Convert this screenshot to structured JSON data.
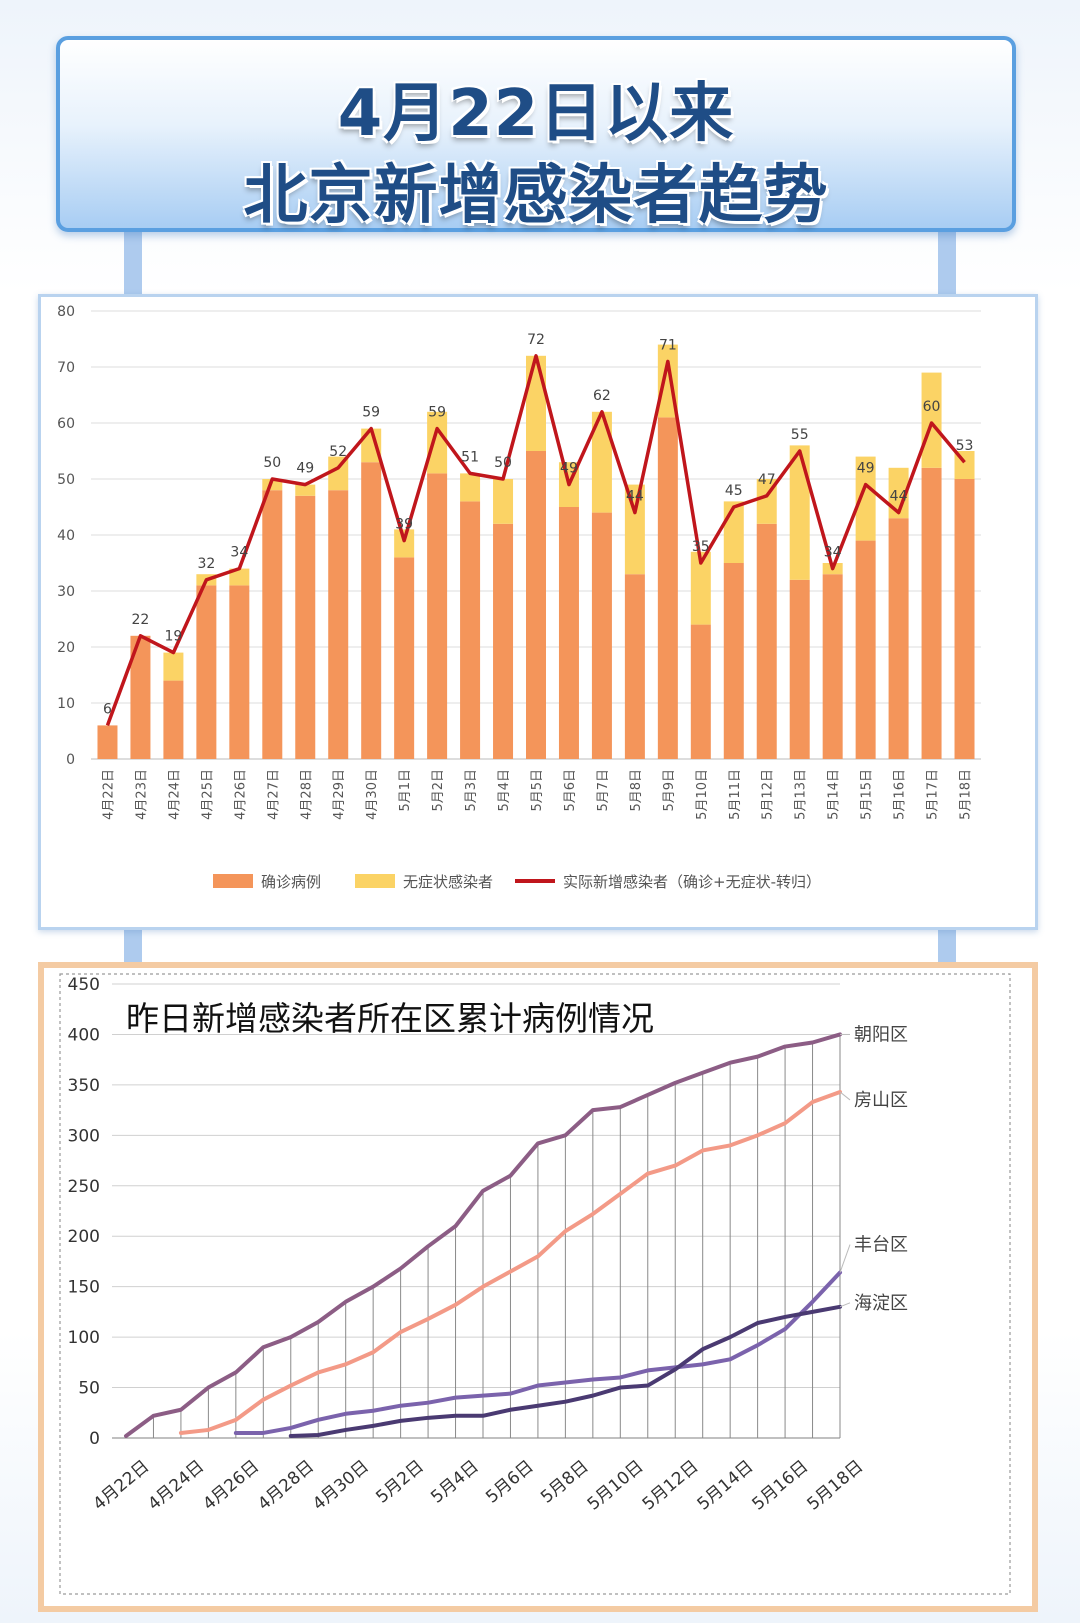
{
  "title": {
    "line1": "4月22日以来",
    "line2": "北京新增感染者趋势"
  },
  "chart_data": [
    {
      "type": "bar",
      "title": "",
      "stacked": true,
      "ylim": [
        0,
        80
      ],
      "yticks": [
        0,
        10,
        20,
        30,
        40,
        50,
        60,
        70,
        80
      ],
      "grid": true,
      "legend_position": "bottom",
      "categories": [
        "4月22日",
        "4月23日",
        "4月24日",
        "4月25日",
        "4月26日",
        "4月27日",
        "4月28日",
        "4月29日",
        "4月30日",
        "5月1日",
        "5月2日",
        "5月3日",
        "5月4日",
        "5月5日",
        "5月6日",
        "5月7日",
        "5月8日",
        "5月9日",
        "5月10日",
        "5月11日",
        "5月12日",
        "5月13日",
        "5月14日",
        "5月15日",
        "5月16日",
        "5月17日",
        "5月18日"
      ],
      "series": [
        {
          "name": "确诊病例",
          "type": "bar",
          "color": "#f4955a",
          "values": [
            6,
            22,
            14,
            31,
            31,
            48,
            47,
            48,
            53,
            36,
            51,
            46,
            42,
            55,
            45,
            44,
            33,
            61,
            24,
            35,
            42,
            32,
            33,
            39,
            43,
            52,
            50
          ]
        },
        {
          "name": "无症状感染者",
          "type": "bar",
          "color": "#fbd365",
          "values": [
            0,
            0,
            5,
            2,
            3,
            2,
            2,
            6,
            6,
            5,
            11,
            5,
            8,
            17,
            8,
            18,
            16,
            13,
            13,
            11,
            8,
            24,
            2,
            15,
            9,
            17,
            5
          ]
        },
        {
          "name": "实际新增感染者（确诊+无症状-转归）",
          "type": "line",
          "color": "#c0161c",
          "values": [
            6,
            22,
            19,
            32,
            34,
            50,
            49,
            52,
            59,
            39,
            59,
            51,
            50,
            72,
            49,
            62,
            44,
            71,
            35,
            45,
            47,
            55,
            34,
            49,
            44,
            60,
            53
          ]
        }
      ]
    },
    {
      "type": "line",
      "title": "昨日新增感染者所在区累计病例情况",
      "ylim": [
        0,
        450
      ],
      "yticks": [
        0,
        50,
        100,
        150,
        200,
        250,
        300,
        350,
        400,
        450
      ],
      "grid": true,
      "x": [
        "4月22日",
        "4月23日",
        "4月24日",
        "4月25日",
        "4月26日",
        "4月27日",
        "4月28日",
        "4月29日",
        "4月30日",
        "5月1日",
        "5月2日",
        "5月3日",
        "5月4日",
        "5月5日",
        "5月6日",
        "5月7日",
        "5月8日",
        "5月9日",
        "5月10日",
        "5月11日",
        "5月12日",
        "5月13日",
        "5月14日",
        "5月15日",
        "5月16日",
        "5月17日",
        "5月18日"
      ],
      "xtick_labels": [
        "4月22日",
        "4月24日",
        "4月26日",
        "4月28日",
        "4月30日",
        "5月2日",
        "5月4日",
        "5月6日",
        "5月8日",
        "5月10日",
        "5月12日",
        "5月14日",
        "5月16日",
        "5月18日"
      ],
      "series": [
        {
          "name": "朝阳区",
          "color": "#8c5d85",
          "values": [
            2,
            22,
            28,
            50,
            65,
            90,
            100,
            115,
            135,
            150,
            168,
            190,
            210,
            245,
            260,
            292,
            300,
            325,
            328,
            340,
            352,
            362,
            372,
            378,
            388,
            392,
            400
          ]
        },
        {
          "name": "房山区",
          "color": "#f39a87",
          "values": [
            null,
            null,
            5,
            8,
            18,
            38,
            52,
            65,
            73,
            85,
            105,
            118,
            132,
            150,
            165,
            180,
            205,
            222,
            242,
            262,
            270,
            285,
            290,
            300,
            312,
            333,
            343
          ]
        },
        {
          "name": "丰台区",
          "color": "#7b63ac",
          "values": [
            null,
            null,
            null,
            null,
            5,
            5,
            10,
            18,
            24,
            27,
            32,
            35,
            40,
            42,
            44,
            52,
            55,
            58,
            60,
            67,
            70,
            73,
            78,
            92,
            108,
            135,
            164
          ]
        },
        {
          "name": "海淀区",
          "color": "#4a3a72",
          "values": [
            null,
            null,
            null,
            null,
            null,
            null,
            2,
            3,
            8,
            12,
            17,
            20,
            22,
            22,
            28,
            32,
            36,
            42,
            50,
            52,
            68,
            88,
            100,
            114,
            120,
            125,
            130
          ]
        }
      ]
    }
  ]
}
